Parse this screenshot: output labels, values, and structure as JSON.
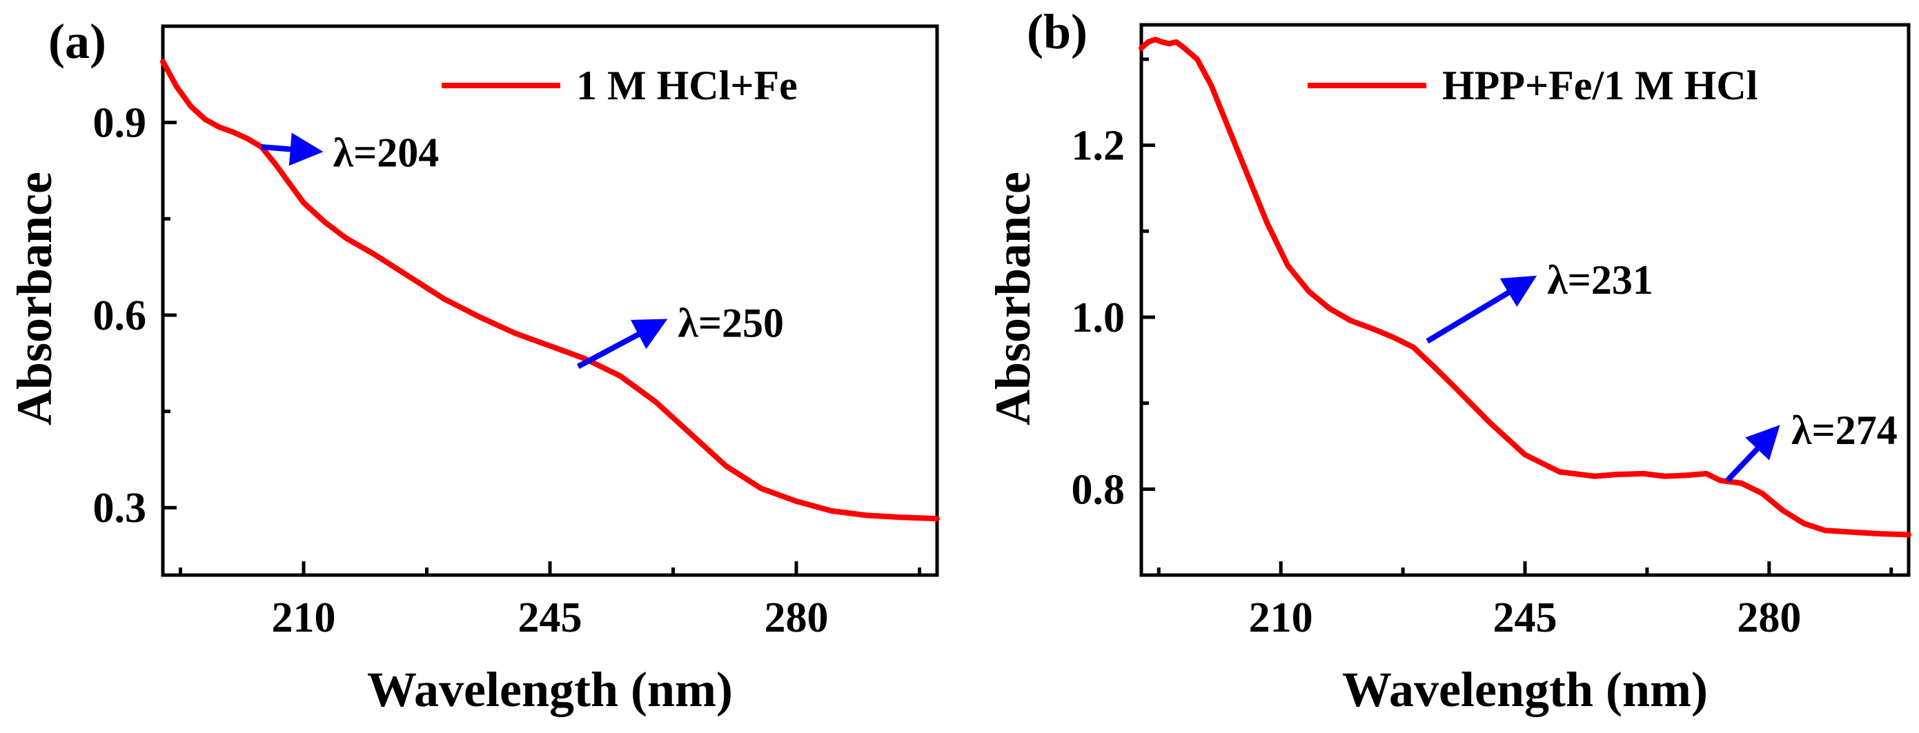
{
  "chart_data": [
    {
      "type": "line",
      "panel_label": "(a)",
      "xlabel": "Wavelength (nm)",
      "ylabel": "Absorbance",
      "xlim": [
        190,
        300
      ],
      "ylim": [
        0.195,
        1.05
      ],
      "x_ticks": [
        210,
        245,
        280
      ],
      "x_tick_labels": [
        "210",
        "245",
        "280"
      ],
      "y_ticks": [
        0.3,
        0.6,
        0.9
      ],
      "y_tick_labels": [
        "0.3",
        "0.6",
        "0.9"
      ],
      "grid": false,
      "legend_position": "top-right",
      "series": [
        {
          "name": "1 M HCl+Fe",
          "color": "#ff0000",
          "x": [
            190,
            192,
            194,
            196,
            198,
            200,
            202,
            204,
            206,
            208,
            210,
            213,
            216,
            220,
            225,
            230,
            235,
            240,
            245,
            250,
            255,
            260,
            265,
            270,
            275,
            280,
            285,
            290,
            295,
            300
          ],
          "y": [
            0.995,
            0.955,
            0.925,
            0.905,
            0.893,
            0.885,
            0.875,
            0.862,
            0.835,
            0.805,
            0.775,
            0.745,
            0.72,
            0.695,
            0.66,
            0.625,
            0.597,
            0.572,
            0.552,
            0.532,
            0.505,
            0.465,
            0.415,
            0.365,
            0.33,
            0.31,
            0.295,
            0.288,
            0.285,
            0.283
          ]
        }
      ],
      "annotations": [
        {
          "text": "λ=204",
          "x": 204,
          "y": 0.862,
          "text_x": 213,
          "text_y": 0.855
        },
        {
          "text": "λ=250",
          "x": 249,
          "y": 0.52,
          "text_x": 262,
          "text_y": 0.59
        }
      ]
    },
    {
      "type": "line",
      "panel_label": "(b)",
      "xlabel": "Wavelength (nm)",
      "ylabel": "Absorbance",
      "xlim": [
        190,
        300
      ],
      "ylim": [
        0.7,
        1.34
      ],
      "x_ticks": [
        210,
        245,
        280
      ],
      "x_tick_labels": [
        "210",
        "245",
        "280"
      ],
      "y_ticks": [
        0.8,
        1.0,
        1.2
      ],
      "y_tick_labels": [
        "0.8",
        "1.0",
        "1.2"
      ],
      "grid": false,
      "legend_position": "top-right",
      "series": [
        {
          "name": "HPP+Fe/1 M HCl",
          "color": "#ff0000",
          "x": [
            190,
            191,
            192,
            193,
            194,
            195,
            196,
            198,
            200,
            202,
            205,
            208,
            211,
            214,
            217,
            220,
            223,
            226,
            229,
            232,
            235,
            240,
            245,
            250,
            255,
            258,
            262,
            265,
            268,
            271,
            273,
            276,
            279,
            282,
            285,
            288,
            292,
            296,
            300
          ],
          "y": [
            1.313,
            1.32,
            1.323,
            1.32,
            1.318,
            1.32,
            1.314,
            1.3,
            1.27,
            1.23,
            1.17,
            1.11,
            1.06,
            1.03,
            1.01,
            0.996,
            0.987,
            0.977,
            0.965,
            0.942,
            0.918,
            0.877,
            0.84,
            0.82,
            0.815,
            0.817,
            0.818,
            0.815,
            0.816,
            0.818,
            0.81,
            0.807,
            0.795,
            0.775,
            0.76,
            0.752,
            0.75,
            0.748,
            0.747
          ]
        }
      ],
      "annotations": [
        {
          "text": "λ=231",
          "x": 231,
          "y": 0.972,
          "text_x": 247,
          "text_y": 1.045
        },
        {
          "text": "λ=274",
          "x": 274,
          "y": 0.81,
          "text_x": 282,
          "text_y": 0.87
        }
      ]
    }
  ]
}
